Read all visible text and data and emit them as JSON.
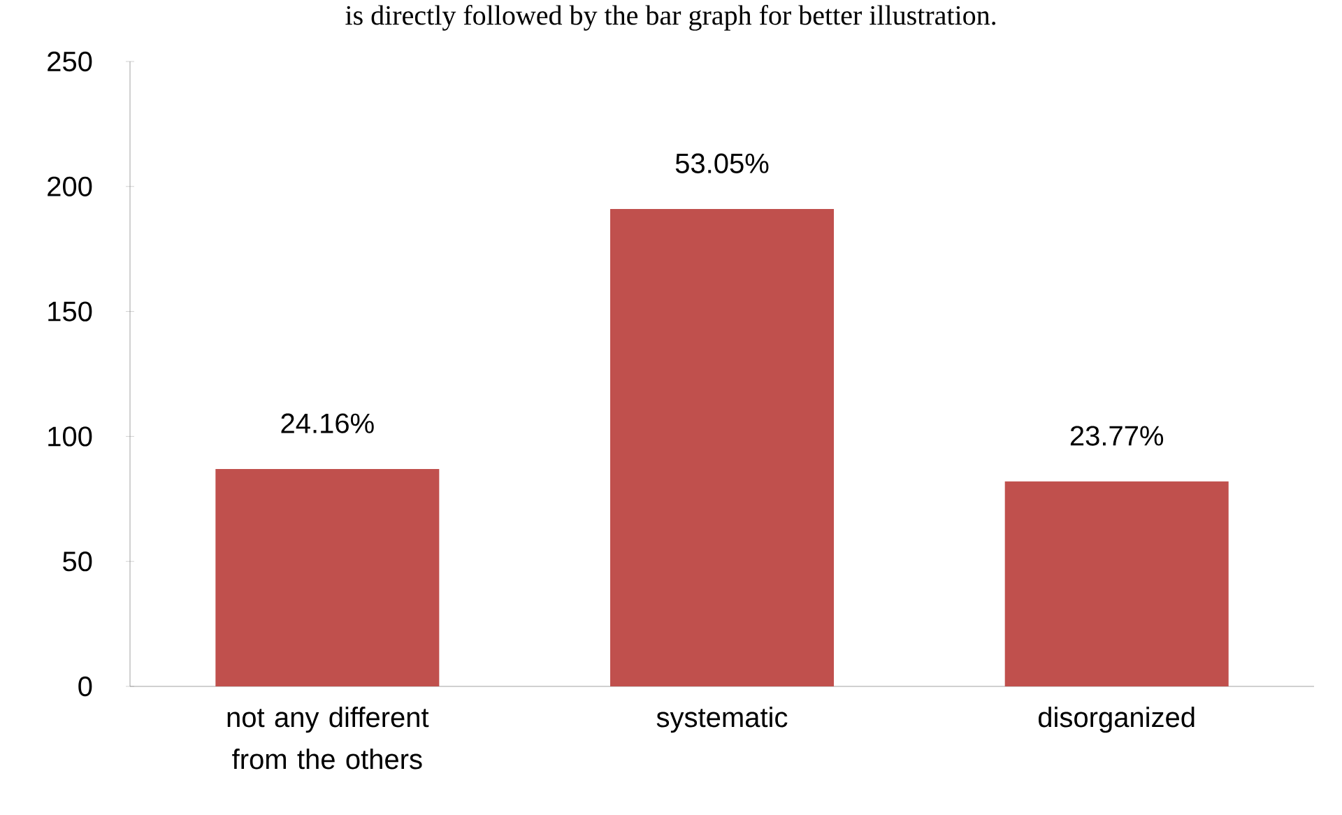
{
  "chart_data": {
    "type": "bar",
    "annotations": [
      "is directly followed by the bar graph for better illustration.",
      {
        "text": "24.16%",
        "x": "not any different from the others",
        "y": 87
      },
      {
        "text": "53.05%",
        "x": "systematic",
        "y": 191
      },
      {
        "text": "23.77%",
        "x": "disorganized",
        "y": 82
      }
    ],
    "categories": [
      "not any different from the others",
      "systematic",
      "disorganized"
    ],
    "values": [
      87,
      191,
      82
    ],
    "color": "#c0504d",
    "ylim": [
      0,
      250
    ],
    "yticks": [
      0,
      50,
      100,
      150,
      200,
      250
    ]
  }
}
